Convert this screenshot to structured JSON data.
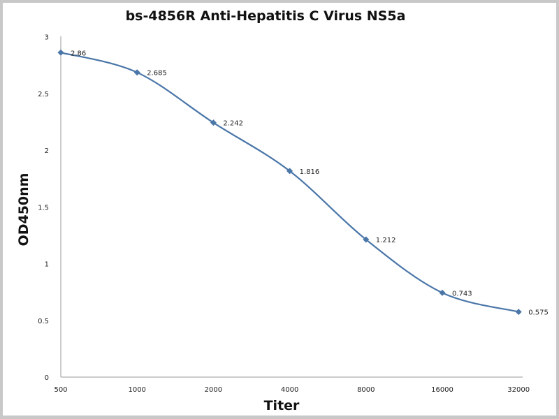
{
  "chart_data": {
    "type": "line",
    "title": "bs-4856R Anti-Hepatitis C Virus NS5a",
    "xlabel": "Titer",
    "ylabel": "OD450nm",
    "categories": [
      "500",
      "1000",
      "2000",
      "4000",
      "8000",
      "16000",
      "32000"
    ],
    "series": [
      {
        "values": [
          2.86,
          2.685,
          2.242,
          1.816,
          1.212,
          0.743,
          0.575
        ],
        "color": "#4a76a8"
      }
    ],
    "data_labels": [
      "2.86",
      "2.685",
      "2.242",
      "1.816",
      "1.212",
      "0.743",
      "0.575"
    ],
    "yticks": [
      "0",
      "0.5",
      "1",
      "1.5",
      "2",
      "2.5",
      "3"
    ],
    "ylim": [
      0,
      3
    ],
    "grid": false,
    "legend": "none",
    "smooth": true,
    "marker": "diamond"
  }
}
